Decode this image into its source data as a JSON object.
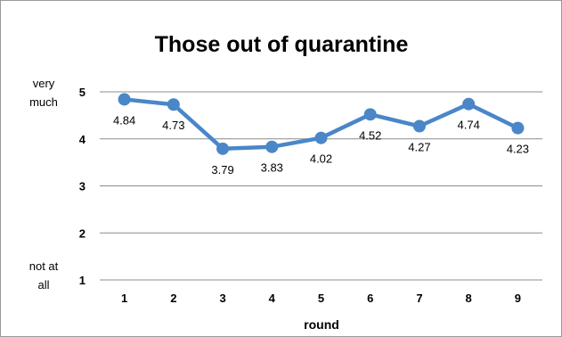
{
  "chart_data": {
    "type": "line",
    "title": "Those out of quarantine",
    "xlabel": "round",
    "ylabel": "",
    "categories": [
      "1",
      "2",
      "3",
      "4",
      "5",
      "6",
      "7",
      "8",
      "9"
    ],
    "series": [
      {
        "values": [
          4.84,
          4.73,
          3.79,
          3.83,
          4.02,
          4.52,
          4.27,
          4.74,
          4.23
        ],
        "color": "#4a86c8"
      }
    ],
    "data_labels": [
      "4.84",
      "4.73",
      "3.79",
      "3.83",
      "4.02",
      "4.52",
      "4.27",
      "4.74",
      "4.23"
    ],
    "ylim": [
      1,
      5
    ],
    "yticks": [
      "1",
      "2",
      "3",
      "4",
      "5"
    ],
    "y_annotations": {
      "top_line1": "very",
      "top_line2": "much",
      "bottom_line1": "not at",
      "bottom_line2": "all"
    },
    "grid": true,
    "legend": "none"
  }
}
